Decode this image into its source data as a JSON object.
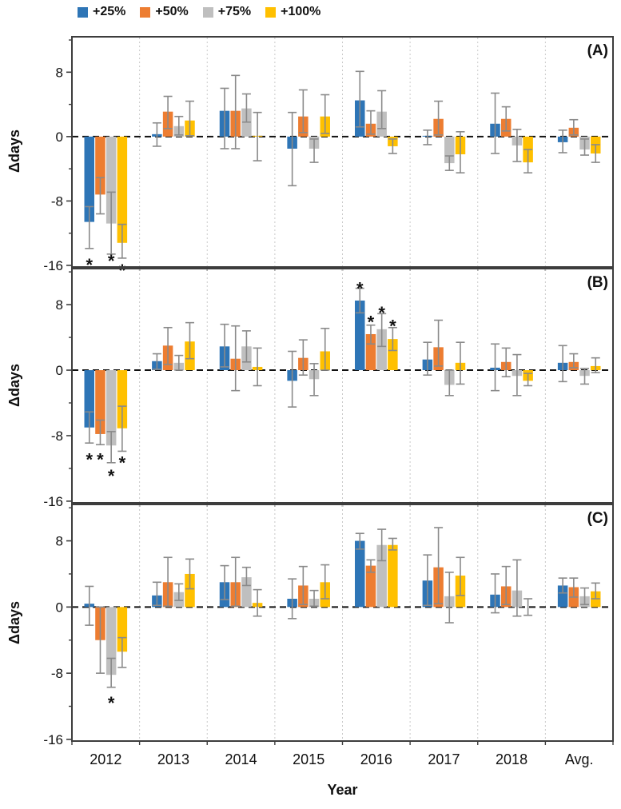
{
  "legend": {
    "items": [
      {
        "label": "+25%",
        "color": "#2E75B6"
      },
      {
        "label": "+50%",
        "color": "#ED7D31"
      },
      {
        "label": "+75%",
        "color": "#BFBFBF"
      },
      {
        "label": "+100%",
        "color": "#FFC000"
      }
    ]
  },
  "axes": {
    "ylabel": "Δdays",
    "xlabel": "Year",
    "ylim": [
      -16.3,
      12.5
    ],
    "yticks_major": [
      8,
      0,
      -8,
      -16
    ],
    "yticks_minor": [
      12,
      4,
      -4,
      -12
    ],
    "grid": "dotted vertical separators between year groups",
    "zero_line": "black dashed",
    "error_bar_color": "#8A8A8A",
    "separator_color": "#C9C9C9",
    "border_color": "#3D3D3D"
  },
  "chart_data": [
    {
      "type": "bar",
      "panel_label": "(A)",
      "categories": [
        "2012",
        "2013",
        "2014",
        "2015",
        "2016",
        "2017",
        "2018",
        "Avg."
      ],
      "series": [
        {
          "name": "+25%",
          "color": "#2E75B6",
          "values": [
            -10.6,
            0.3,
            3.2,
            -1.5,
            4.5,
            0.1,
            1.6,
            -0.7
          ],
          "err_hi": [
            -8.7,
            1.7,
            6.0,
            3.0,
            8.1,
            0.8,
            5.4,
            0.8
          ],
          "err_lo": [
            -13.9,
            -1.2,
            -1.5,
            -6.1,
            1.2,
            -1.0,
            -2.1,
            -2.0
          ]
        },
        {
          "name": "+50%",
          "color": "#ED7D31",
          "values": [
            -7.2,
            3.1,
            3.2,
            2.5,
            1.6,
            2.2,
            2.2,
            1.1
          ],
          "err_hi": [
            -5.1,
            5.0,
            7.6,
            5.8,
            3.2,
            4.4,
            3.7,
            2.1
          ],
          "err_lo": [
            -9.6,
            1.0,
            -1.5,
            0.5,
            0.3,
            0.2,
            0.7,
            0.2
          ]
        },
        {
          "name": "+75%",
          "color": "#BFBFBF",
          "values": [
            -10.8,
            1.3,
            3.5,
            -1.5,
            3.1,
            -3.3,
            -1.1,
            -1.6
          ],
          "err_hi": [
            -6.9,
            2.5,
            5.3,
            -0.3,
            5.7,
            -2.4,
            0.9,
            -0.3
          ],
          "err_lo": [
            -14.6,
            0.2,
            1.8,
            -3.2,
            1.0,
            -4.2,
            -3.1,
            -2.3
          ]
        },
        {
          "name": "+100%",
          "color": "#FFC000",
          "values": [
            -13.2,
            2.0,
            0.1,
            2.5,
            -1.2,
            -2.2,
            -3.2,
            -2.1
          ],
          "err_hi": [
            -10.9,
            4.4,
            3.0,
            5.2,
            -0.3,
            0.6,
            -1.6,
            -1.0
          ],
          "err_lo": [
            -15.1,
            0.1,
            -3.0,
            0.4,
            -2.1,
            -4.5,
            -4.5,
            -3.2
          ]
        }
      ],
      "asterisks": [
        {
          "g": 0,
          "s": 0,
          "v": -15.4
        },
        {
          "g": 0,
          "s": 2,
          "v": -14.9
        },
        {
          "g": 0,
          "s": 3,
          "v": -16.1
        }
      ]
    },
    {
      "type": "bar",
      "panel_label": "(B)",
      "categories": [
        "2012",
        "2013",
        "2014",
        "2015",
        "2016",
        "2017",
        "2018",
        "Avg."
      ],
      "series": [
        {
          "name": "+25%",
          "color": "#2E75B6",
          "values": [
            -7.0,
            1.1,
            2.9,
            -1.3,
            8.5,
            1.3,
            0.3,
            0.9
          ],
          "err_hi": [
            -5.1,
            2.0,
            5.6,
            2.3,
            10.0,
            3.4,
            3.2,
            3.0
          ],
          "err_lo": [
            -8.9,
            0.1,
            0.4,
            -4.5,
            7.0,
            -0.6,
            -2.5,
            -1.4
          ]
        },
        {
          "name": "+50%",
          "color": "#ED7D31",
          "values": [
            -7.8,
            3.0,
            1.4,
            1.5,
            4.4,
            2.8,
            1.0,
            1.0
          ],
          "err_hi": [
            -6.1,
            5.2,
            5.4,
            3.7,
            5.5,
            6.1,
            2.7,
            2.0
          ],
          "err_lo": [
            -9.1,
            0.7,
            -2.5,
            -0.6,
            3.2,
            0.5,
            -0.8,
            0.3
          ]
        },
        {
          "name": "+75%",
          "color": "#BFBFBF",
          "values": [
            -9.2,
            0.9,
            2.9,
            -1.1,
            5.0,
            -1.8,
            -0.7,
            -0.7
          ],
          "err_hi": [
            -7.5,
            1.8,
            4.8,
            0.8,
            6.9,
            0.0,
            1.9,
            0.2
          ],
          "err_lo": [
            -11.3,
            0.0,
            1.0,
            -3.1,
            2.9,
            -3.1,
            -3.1,
            -1.7
          ]
        },
        {
          "name": "+100%",
          "color": "#FFC000",
          "values": [
            -7.1,
            3.5,
            0.4,
            2.3,
            3.8,
            0.9,
            -1.3,
            0.5
          ],
          "err_hi": [
            -4.4,
            5.8,
            2.7,
            5.1,
            5.2,
            3.4,
            -0.4,
            1.5
          ],
          "err_lo": [
            -9.9,
            1.4,
            -1.9,
            0.0,
            2.4,
            -1.7,
            -1.9,
            -0.3
          ]
        }
      ],
      "asterisks": [
        {
          "g": 0,
          "s": 0,
          "v": -10.4
        },
        {
          "g": 0,
          "s": 1,
          "v": -10.4
        },
        {
          "g": 0,
          "s": 2,
          "v": -12.4
        },
        {
          "g": 0,
          "s": 3,
          "v": -10.8
        },
        {
          "g": 4,
          "s": 0,
          "v": 10.5
        },
        {
          "g": 4,
          "s": 1,
          "v": 6.4
        },
        {
          "g": 4,
          "s": 2,
          "v": 7.5
        },
        {
          "g": 4,
          "s": 3,
          "v": 5.9
        }
      ]
    },
    {
      "type": "bar",
      "panel_label": "(C)",
      "categories": [
        "2012",
        "2013",
        "2014",
        "2015",
        "2016",
        "2017",
        "2018",
        "Avg."
      ],
      "series": [
        {
          "name": "+25%",
          "color": "#2E75B6",
          "values": [
            0.4,
            1.4,
            3.0,
            1.0,
            8.0,
            3.2,
            1.5,
            2.6
          ],
          "err_hi": [
            2.5,
            3.0,
            5.0,
            3.4,
            8.9,
            6.3,
            4.0,
            3.5
          ],
          "err_lo": [
            -2.2,
            0.2,
            0.9,
            -1.4,
            7.0,
            0.2,
            -0.7,
            1.7
          ]
        },
        {
          "name": "+50%",
          "color": "#ED7D31",
          "values": [
            -4.0,
            3.0,
            3.0,
            2.6,
            5.0,
            4.8,
            2.5,
            2.4
          ],
          "err_hi": [
            0.0,
            6.0,
            6.0,
            4.9,
            5.7,
            9.6,
            4.9,
            3.5
          ],
          "err_lo": [
            -8.0,
            0.1,
            0.1,
            0.3,
            4.2,
            0.4,
            0.3,
            1.2
          ]
        },
        {
          "name": "+75%",
          "color": "#BFBFBF",
          "values": [
            -8.2,
            1.8,
            3.6,
            1.0,
            7.5,
            1.3,
            2.0,
            1.3
          ],
          "err_hi": [
            -6.2,
            2.8,
            4.8,
            2.0,
            9.4,
            4.2,
            5.7,
            2.3
          ],
          "err_lo": [
            -9.7,
            0.8,
            2.6,
            0.1,
            5.6,
            -1.9,
            -1.1,
            0.3
          ]
        },
        {
          "name": "+100%",
          "color": "#FFC000",
          "values": [
            -5.4,
            4.0,
            0.5,
            3.0,
            7.5,
            3.8,
            0.0,
            1.9
          ],
          "err_hi": [
            -3.7,
            5.8,
            2.1,
            5.1,
            8.3,
            6.0,
            1.0,
            2.9
          ],
          "err_lo": [
            -7.3,
            2.2,
            -1.1,
            1.0,
            6.9,
            1.4,
            -1.0,
            1.0
          ]
        }
      ],
      "asterisks": [
        {
          "g": 0,
          "s": 2,
          "v": -11.1
        }
      ]
    }
  ]
}
